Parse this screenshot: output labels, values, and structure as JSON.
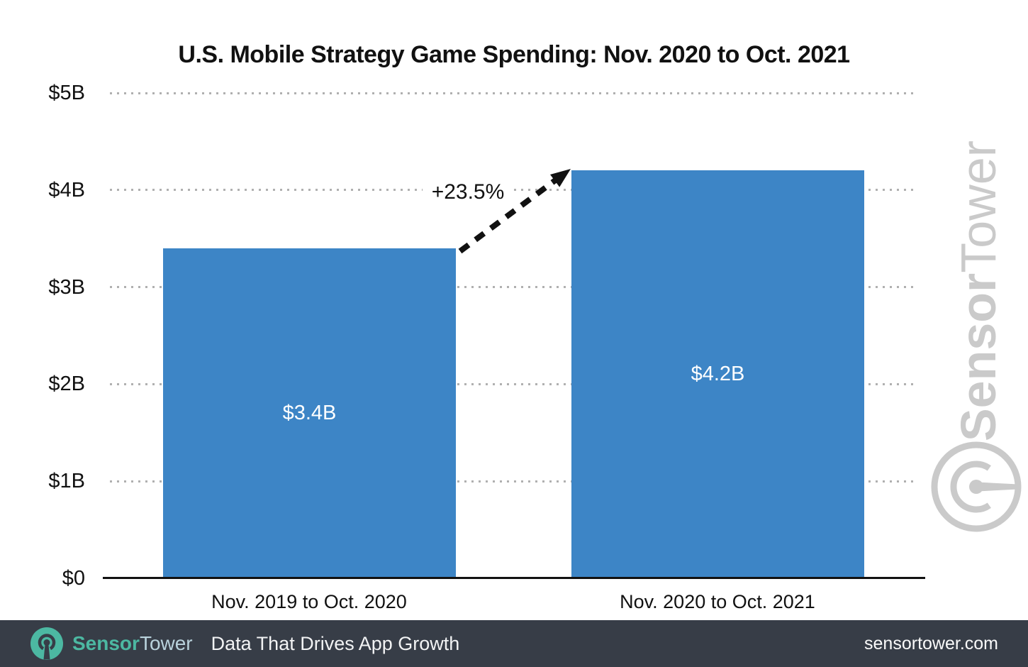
{
  "title": "U.S. Mobile Strategy Game Spending: Nov. 2020 to Oct. 2021",
  "chart_data": {
    "type": "bar",
    "title": "U.S. Mobile Strategy Game Spending: Nov. 2020 to Oct. 2021",
    "categories": [
      "Nov. 2019 to Oct. 2020",
      "Nov. 2020 to Oct. 2021"
    ],
    "values": [
      3.4,
      4.2
    ],
    "unit": "billions USD",
    "value_labels": [
      "$3.4B",
      "$4.2B"
    ],
    "growth_annotation": "+23.5%",
    "ytick_labels": [
      "$0",
      "$1B",
      "$2B",
      "$3B",
      "$4B",
      "$5B"
    ],
    "ylim": [
      0,
      5
    ],
    "grid": "dotted-horizontal",
    "legend": "none"
  },
  "watermark": {
    "brand_bold": "Sensor",
    "brand_light": "Tower"
  },
  "footer": {
    "brand_bold": "Sensor",
    "brand_light": "Tower",
    "tagline": "Data That Drives App Growth",
    "website": "sensortower.com"
  },
  "colors": {
    "bar_blue": "#3d85c6",
    "footer_bg": "#373d47",
    "brand_teal": "#4cb8a2",
    "brand_tower_text": "#b9d2dc",
    "watermark_gray": "#cacaca",
    "grid_dot_gray": "#b0b0b0",
    "text_black": "#111111"
  }
}
